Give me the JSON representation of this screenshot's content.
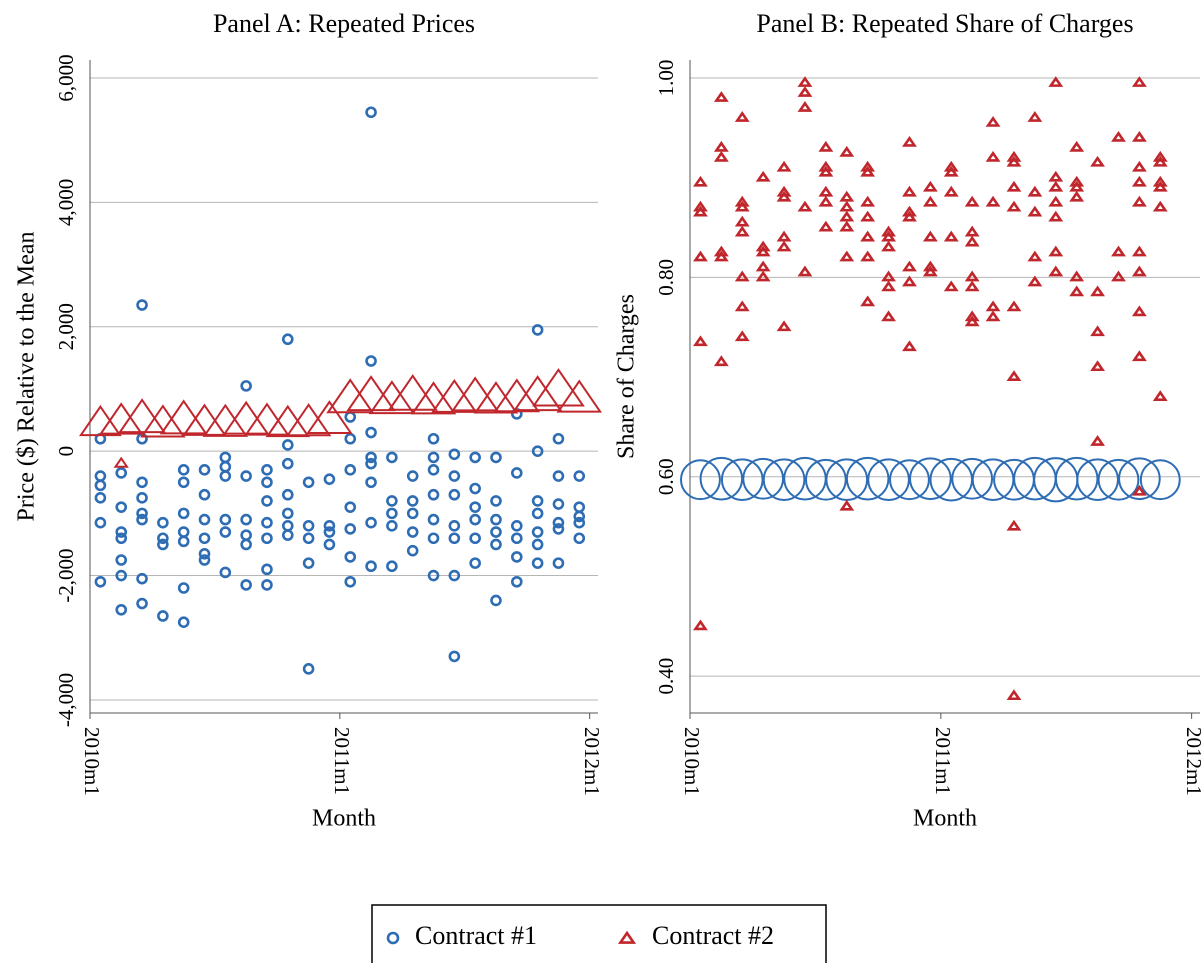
{
  "chart_data": [
    {
      "type": "scatter",
      "title": "Panel A: Repeated Prices",
      "xlabel": "Month",
      "ylabel": "Price ($) Relative to the Mean",
      "xlim": [
        0,
        24.4
      ],
      "xticks": [
        {
          "value": 0,
          "label": "2010m1"
        },
        {
          "value": 12,
          "label": "2011m1"
        },
        {
          "value": 24,
          "label": "2012m1"
        }
      ],
      "ylim": [
        -4210,
        6290
      ],
      "yticks": [
        {
          "value": -4000,
          "label": "-4,000"
        },
        {
          "value": -2000,
          "label": "-2,000"
        },
        0,
        {
          "value": 2000,
          "label": "2,000"
        },
        {
          "value": 4000,
          "label": "4,000"
        },
        {
          "value": 6000,
          "label": "6,000"
        }
      ],
      "grid": true,
      "series": [
        {
          "name": "Contract #1",
          "color": "#2e6db4",
          "marker": "circle",
          "x": [
            0.5,
            0.5,
            0.5,
            0.5,
            0.5,
            0.5,
            1.5,
            1.5,
            1.5,
            1.5,
            1.5,
            1.5,
            1.5,
            2.5,
            2.5,
            2.5,
            2.5,
            2.5,
            2.5,
            2.5,
            2.5,
            3.5,
            3.5,
            3.5,
            3.5,
            4.5,
            4.5,
            4.5,
            4.5,
            4.5,
            4.5,
            4.5,
            5.5,
            5.5,
            5.5,
            5.5,
            5.5,
            5.5,
            6.5,
            6.5,
            6.5,
            6.5,
            6.5,
            6.5,
            7.5,
            7.5,
            7.5,
            7.5,
            7.5,
            7.5,
            8.5,
            8.5,
            8.5,
            8.5,
            8.5,
            8.5,
            8.5,
            9.5,
            9.5,
            9.5,
            9.5,
            9.5,
            9.5,
            9.5,
            10.5,
            10.5,
            10.5,
            10.5,
            10.5,
            11.5,
            11.5,
            11.5,
            11.5,
            12.5,
            12.5,
            12.5,
            12.5,
            12.5,
            12.5,
            12.5,
            13.5,
            13.5,
            13.5,
            13.5,
            13.5,
            13.5,
            13.5,
            13.5,
            14.5,
            14.5,
            14.5,
            14.5,
            14.5,
            15.5,
            15.5,
            15.5,
            15.5,
            15.5,
            16.5,
            16.5,
            16.5,
            16.5,
            16.5,
            16.5,
            16.5,
            17.5,
            17.5,
            17.5,
            17.5,
            17.5,
            17.5,
            17.5,
            18.5,
            18.5,
            18.5,
            18.5,
            18.5,
            18.5,
            19.5,
            19.5,
            19.5,
            19.5,
            19.5,
            19.5,
            20.5,
            20.5,
            20.5,
            20.5,
            20.5,
            20.5,
            21.5,
            21.5,
            21.5,
            21.5,
            21.5,
            21.5,
            21.5,
            22.5,
            22.5,
            22.5,
            22.5,
            22.5,
            22.5,
            23.5,
            23.5,
            23.5,
            23.5,
            23.5
          ],
          "values": [
            200,
            -400,
            -550,
            -750,
            -1150,
            -2100,
            -350,
            -900,
            -1300,
            -1400,
            -1750,
            -2000,
            -2550,
            2350,
            200,
            -500,
            -750,
            -1000,
            -1100,
            -2050,
            -2450,
            -1150,
            -1400,
            -1500,
            -2650,
            -300,
            -500,
            -1000,
            -1300,
            -1450,
            -2200,
            -2750,
            -300,
            -700,
            -1100,
            -1400,
            -1650,
            -1750,
            -100,
            -250,
            -400,
            -1100,
            -1300,
            -1950,
            1050,
            -400,
            -1100,
            -1350,
            -1500,
            -2150,
            -300,
            -500,
            -800,
            -1150,
            -1400,
            -1900,
            -2150,
            1800,
            100,
            -200,
            -700,
            -1000,
            -1200,
            -1350,
            -500,
            -1200,
            -1400,
            -1800,
            -3500,
            -450,
            -1200,
            -1300,
            -1500,
            550,
            200,
            -300,
            -900,
            -1250,
            -1700,
            -2100,
            5450,
            1450,
            300,
            -100,
            -200,
            -500,
            -1150,
            -1850,
            -100,
            -800,
            -1000,
            -1200,
            -1850,
            -400,
            -800,
            -1000,
            -1300,
            -1600,
            200,
            -100,
            -300,
            -700,
            -1100,
            -1400,
            -2000,
            -50,
            -400,
            -700,
            -1200,
            -1400,
            -2000,
            -3300,
            -100,
            -600,
            -900,
            -1100,
            -1400,
            -1800,
            -100,
            -800,
            -1100,
            -1300,
            -1500,
            -2400,
            600,
            -350,
            -1200,
            -1400,
            -1700,
            -2100,
            1950,
            0,
            -800,
            -1000,
            -1300,
            -1500,
            -1800,
            200,
            -400,
            -850,
            -1150,
            -1250,
            -1800,
            -400,
            -900,
            -1050,
            -1150,
            -1400
          ]
        },
        {
          "name": "Contract #2",
          "color": "#c0272d",
          "marker": "triangle",
          "x": [
            0.5,
            1.5,
            2.5,
            3.5,
            4.5,
            5.5,
            6.5,
            7.5,
            8.5,
            9.5,
            10.5,
            11.5,
            12.5,
            13.5,
            14.5,
            15.5,
            16.5,
            17.5,
            18.5,
            19.5,
            20.5,
            21.5,
            22.5,
            23.5,
            1.5
          ],
          "values": [
            430,
            460,
            500,
            420,
            480,
            440,
            430,
            470,
            450,
            420,
            440,
            480,
            820,
            860,
            800,
            870,
            790,
            820,
            850,
            800,
            830,
            860,
            950,
            820,
            -200
          ],
          "sizes": [
            35,
            38,
            45,
            40,
            45,
            38,
            40,
            42,
            40,
            38,
            40,
            42,
            45,
            48,
            42,
            50,
            40,
            42,
            45,
            38,
            42,
            48,
            55,
            40,
            3
          ]
        }
      ]
    },
    {
      "type": "scatter",
      "title": "Panel B: Repeated Share of Charges",
      "xlabel": "Month",
      "ylabel": "Share of Charges",
      "xlim": [
        0,
        24.4
      ],
      "xticks": [
        {
          "value": 0,
          "label": "2010m1"
        },
        {
          "value": 12,
          "label": "2011m1"
        },
        {
          "value": 24,
          "label": "2012m1"
        }
      ],
      "ylim": [
        0.363,
        1.018
      ],
      "yticks": [
        {
          "value": 0.4,
          "label": "0.40"
        },
        {
          "value": 0.6,
          "label": "0.60"
        },
        {
          "value": 0.8,
          "label": "0.80"
        },
        {
          "value": 1,
          "label": "1.00"
        }
      ],
      "grid": true,
      "series": [
        {
          "color": "#2e6db4",
          "marker": "circle",
          "x": [
            0.5,
            1.5,
            2.5,
            3.5,
            4.5,
            5.5,
            6.5,
            7.5,
            8.5,
            9.5,
            10.5,
            11.5,
            12.5,
            13.5,
            14.5,
            15.5,
            16.5,
            17.5,
            18.5,
            19.5,
            20.5,
            21.5,
            22.5
          ],
          "values": [
            0.597,
            0.598,
            0.597,
            0.598,
            0.597,
            0.598,
            0.597,
            0.597,
            0.598,
            0.597,
            0.597,
            0.598,
            0.597,
            0.598,
            0.597,
            0.597,
            0.598,
            0.597,
            0.598,
            0.597,
            0.597,
            0.598,
            0.597
          ],
          "sizes": [
            42,
            48,
            46,
            44,
            46,
            48,
            44,
            46,
            48,
            46,
            42,
            46,
            48,
            44,
            46,
            44,
            48,
            52,
            48,
            46,
            44,
            46,
            42
          ]
        },
        {
          "color": "#c0272d",
          "marker": "triangle",
          "x": [
            0.5,
            0.5,
            0.5,
            0.5,
            0.5,
            0.5,
            1.5,
            1.5,
            1.5,
            1.5,
            1.5,
            1.5,
            2.5,
            2.5,
            2.5,
            2.5,
            2.5,
            2.5,
            2.5,
            2.5,
            3.5,
            3.5,
            3.5,
            3.5,
            3.5,
            4.5,
            4.5,
            4.5,
            4.5,
            4.5,
            4.5,
            5.5,
            5.5,
            5.5,
            5.5,
            5.5,
            6.5,
            6.5,
            6.5,
            6.5,
            6.5,
            6.5,
            7.5,
            7.5,
            7.5,
            7.5,
            7.5,
            7.5,
            7.5,
            8.5,
            8.5,
            8.5,
            8.5,
            8.5,
            8.5,
            8.5,
            9.5,
            9.5,
            9.5,
            9.5,
            9.5,
            9.5,
            10.5,
            10.5,
            10.5,
            10.5,
            10.5,
            10.5,
            10.5,
            11.5,
            11.5,
            11.5,
            11.5,
            11.5,
            12.5,
            12.5,
            12.5,
            12.5,
            12.5,
            13.5,
            13.5,
            13.5,
            13.5,
            13.5,
            13.5,
            13.5,
            14.5,
            14.5,
            14.5,
            14.5,
            14.5,
            15.5,
            15.5,
            15.5,
            15.5,
            15.5,
            15.5,
            15.5,
            15.5,
            16.5,
            16.5,
            16.5,
            16.5,
            16.5,
            17.5,
            17.5,
            17.5,
            17.5,
            17.5,
            17.5,
            17.5,
            18.5,
            18.5,
            18.5,
            18.5,
            18.5,
            18.5,
            19.5,
            19.5,
            19.5,
            19.5,
            19.5,
            20.5,
            20.5,
            20.5,
            21.5,
            21.5,
            21.5,
            21.5,
            21.5,
            21.5,
            21.5,
            21.5,
            21.5,
            21.5,
            22.5,
            22.5,
            22.5,
            22.5,
            22.5,
            22.5
          ],
          "values": [
            0.87,
            0.865,
            0.895,
            0.82,
            0.735,
            0.45,
            0.98,
            0.93,
            0.92,
            0.825,
            0.82,
            0.715,
            0.96,
            0.875,
            0.87,
            0.855,
            0.845,
            0.8,
            0.77,
            0.74,
            0.9,
            0.83,
            0.825,
            0.81,
            0.8,
            0.91,
            0.885,
            0.88,
            0.84,
            0.83,
            0.75,
            0.995,
            0.985,
            0.97,
            0.87,
            0.805,
            0.93,
            0.91,
            0.905,
            0.885,
            0.875,
            0.85,
            0.925,
            0.88,
            0.87,
            0.86,
            0.85,
            0.82,
            0.57,
            0.91,
            0.905,
            0.875,
            0.86,
            0.84,
            0.82,
            0.775,
            0.845,
            0.84,
            0.83,
            0.8,
            0.79,
            0.76,
            0.935,
            0.885,
            0.865,
            0.86,
            0.81,
            0.795,
            0.73,
            0.89,
            0.875,
            0.84,
            0.81,
            0.805,
            0.91,
            0.905,
            0.885,
            0.84,
            0.79,
            0.875,
            0.845,
            0.835,
            0.8,
            0.79,
            0.76,
            0.755,
            0.955,
            0.92,
            0.875,
            0.77,
            0.76,
            0.92,
            0.915,
            0.89,
            0.87,
            0.77,
            0.7,
            0.55,
            0.38,
            0.96,
            0.885,
            0.865,
            0.82,
            0.795,
            0.995,
            0.9,
            0.89,
            0.875,
            0.86,
            0.825,
            0.805,
            0.93,
            0.895,
            0.89,
            0.88,
            0.8,
            0.785,
            0.915,
            0.785,
            0.745,
            0.71,
            0.635,
            0.94,
            0.825,
            0.8,
            0.995,
            0.94,
            0.91,
            0.895,
            0.875,
            0.825,
            0.805,
            0.765,
            0.72,
            0.585,
            0.92,
            0.915,
            0.895,
            0.89,
            0.87,
            0.68
          ]
        }
      ]
    }
  ]
}
